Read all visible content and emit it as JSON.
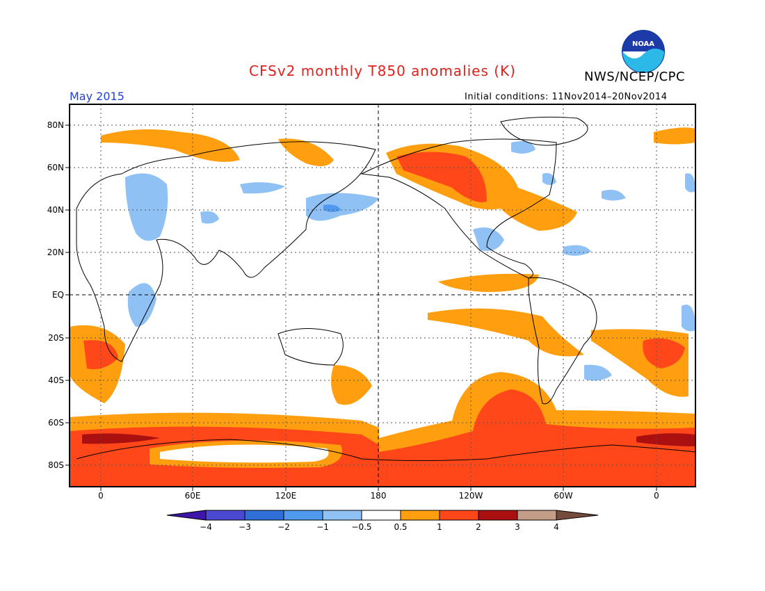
{
  "header": {
    "title": "CFSv2 monthly T850 anomalies (K)",
    "agency": "NWS/NCEP/CPC",
    "month": "May 2015",
    "initial_conditions": "Initial conditions: 11Nov2014–20Nov2014",
    "logo_text": "NOAA"
  },
  "map": {
    "lat_labels": [
      "80N",
      "60N",
      "40N",
      "20N",
      "EQ",
      "20S",
      "40S",
      "60S",
      "80S"
    ],
    "lon_labels": [
      "0",
      "60E",
      "120E",
      "180",
      "120W",
      "60W",
      "0"
    ],
    "longitude_range": [
      -20,
      380
    ],
    "latitude_range": [
      -90,
      90
    ]
  },
  "colorbar": {
    "labels": [
      "−4",
      "−3",
      "−2",
      "−1",
      "−0.5",
      "0.5",
      "1",
      "2",
      "3",
      "4"
    ],
    "colors": [
      "#3d15a8",
      "#4b49cf",
      "#2f6fd8",
      "#4f99ee",
      "#8fc1f5",
      "#ffffff",
      "#ff9f0f",
      "#ff4719",
      "#aa1010",
      "#c49d89",
      "#754b3c"
    ]
  }
}
